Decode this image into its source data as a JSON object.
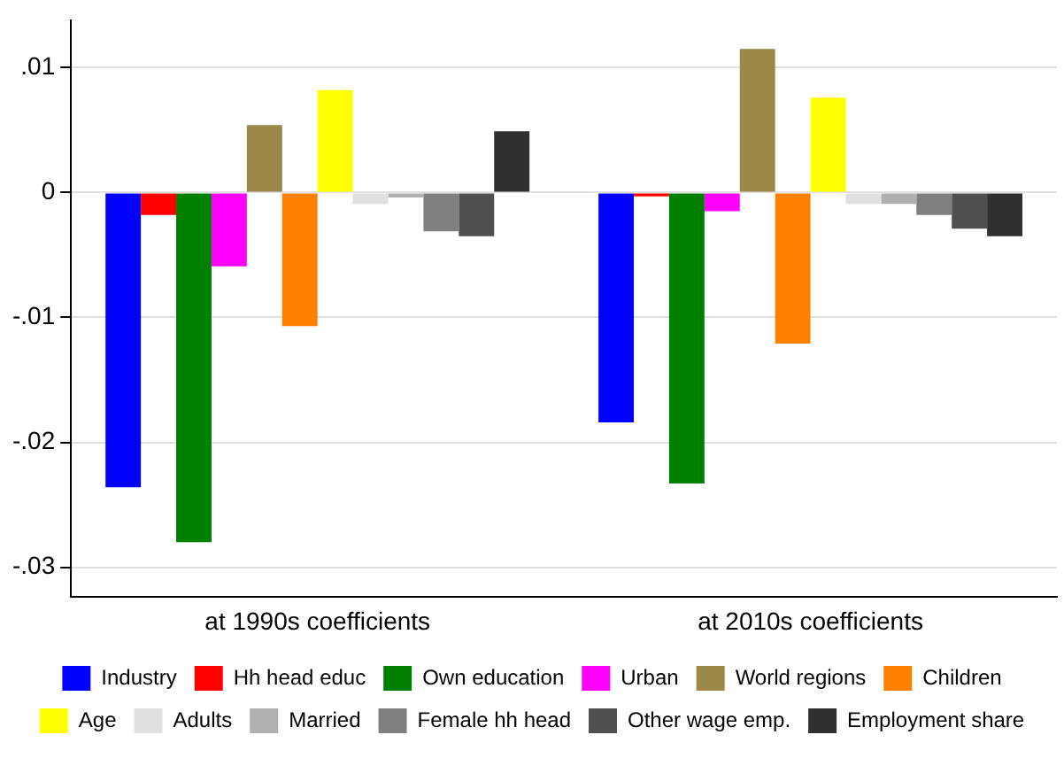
{
  "chart_data": {
    "type": "bar",
    "categories": [
      "at 1990s coefficients",
      "at 2010s coefficients"
    ],
    "series": [
      {
        "name": "Industry",
        "color": "#0000ff",
        "values": [
          -0.0236,
          -0.0184
        ]
      },
      {
        "name": "Hh head educ",
        "color": "#ff0000",
        "values": [
          -0.0018,
          -0.0003
        ]
      },
      {
        "name": "Own education",
        "color": "#008000",
        "values": [
          -0.028,
          -0.0233
        ]
      },
      {
        "name": "Urban",
        "color": "#ff00ff",
        "values": [
          -0.0059,
          -0.0015
        ]
      },
      {
        "name": "World regions",
        "color": "#9c8847",
        "values": [
          0.0054,
          0.0115
        ]
      },
      {
        "name": "Children",
        "color": "#ff8000",
        "values": [
          -0.0107,
          -0.0121
        ]
      },
      {
        "name": "Age",
        "color": "#ffff00",
        "values": [
          0.0082,
          0.0076
        ]
      },
      {
        "name": "Adults",
        "color": "#e0e0e0",
        "values": [
          -0.0009,
          -0.0009
        ]
      },
      {
        "name": "Married",
        "color": "#b0b0b0",
        "values": [
          -0.0004,
          -0.0009
        ]
      },
      {
        "name": "Female hh head",
        "color": "#808080",
        "values": [
          -0.0031,
          -0.0018
        ]
      },
      {
        "name": "Other wage emp.",
        "color": "#505050",
        "values": [
          -0.0035,
          -0.0029
        ]
      },
      {
        "name": "Employment share",
        "color": "#303030",
        "values": [
          0.0049,
          -0.0035
        ]
      }
    ],
    "ylim": [
      -0.0324,
      0.0138
    ],
    "yticks": [
      {
        "value": -0.03,
        "label": "-.03"
      },
      {
        "value": -0.02,
        "label": "-.02"
      },
      {
        "value": -0.01,
        "label": "-.01"
      },
      0,
      {
        "value": 0.01,
        "label": ".01"
      }
    ],
    "grid": "y",
    "legend": "bottom"
  }
}
